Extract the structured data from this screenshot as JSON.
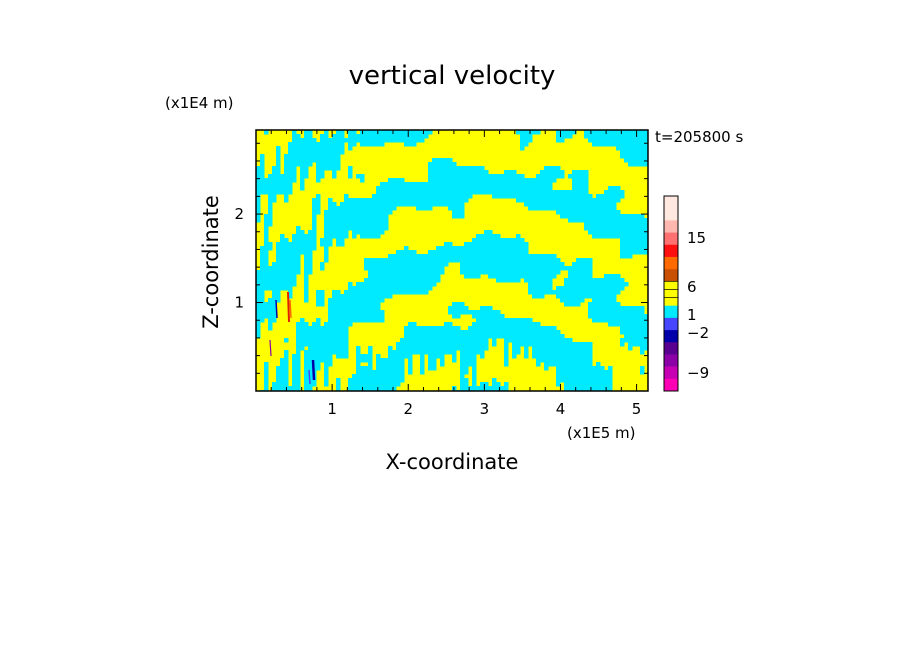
{
  "chart_data": {
    "type": "heatmap",
    "title": "vertical velocity",
    "xlabel": "X-coordinate",
    "ylabel": "Z-coordinate",
    "x_unit": "(x1E5 m)",
    "y_unit": "(x1E4 m)",
    "time_label": "t=205800 s",
    "xlim": [
      0.0,
      5.15
    ],
    "ylim": [
      0.0,
      2.95
    ],
    "x_ticks": [
      1,
      2,
      3,
      4,
      5
    ],
    "y_ticks": [
      1,
      2
    ],
    "colorbar": {
      "levels": [
        {
          "color": "#ffe8e0"
        },
        {
          "color": "#ffe8e0"
        },
        {
          "color": "#ffb7b0"
        },
        {
          "color": "#ff7070"
        },
        {
          "color": "#ff1010"
        },
        {
          "color": "#ff6a00"
        },
        {
          "color": "#c85000"
        },
        {
          "color": "#ffff00"
        },
        {
          "color": "#ffff00"
        },
        {
          "color": "#00eaff"
        },
        {
          "color": "#4646ff"
        },
        {
          "color": "#0000aa"
        },
        {
          "color": "#5a0090"
        },
        {
          "color": "#8c00a8"
        },
        {
          "color": "#c800b4"
        },
        {
          "color": "#ff00b4"
        }
      ],
      "labels": [
        {
          "text": "15",
          "value": 15
        },
        {
          "text": "6",
          "value": 6
        },
        {
          "text": "1",
          "value": 1
        },
        {
          "text": "−2",
          "value": -2
        },
        {
          "text": "−9",
          "value": -9
        }
      ]
    },
    "field_colors": {
      "positive": "#ffff00",
      "negative": "#00eaff"
    }
  }
}
